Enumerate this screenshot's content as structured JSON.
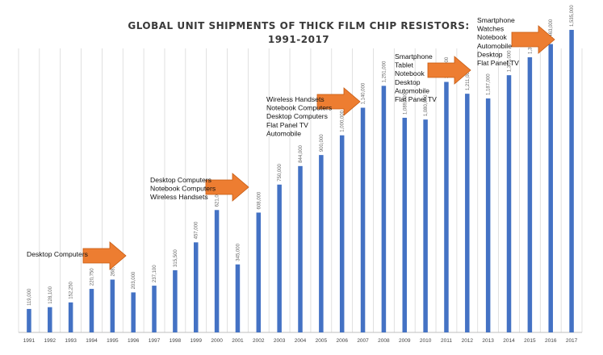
{
  "chart_data": {
    "type": "bar",
    "title_lines": [
      "GLOBAL UNIT SHIPMENTS OF THICK FILM CHIP RESISTORS:",
      "1991-2017"
    ],
    "xlabel": "",
    "ylabel": "",
    "ylim": [
      0,
      1400000
    ],
    "grid": "vertical lines between categories",
    "bar_color": "#4472c4",
    "categories": [
      "1991",
      "1992",
      "1993",
      "1994",
      "1995",
      "1996",
      "1997",
      "1998",
      "1999",
      "2000",
      "2001",
      "2002",
      "2003",
      "2004",
      "2005",
      "2006",
      "2007",
      "2008",
      "2009",
      "2010",
      "2011",
      "2012",
      "2013",
      "2014",
      "2015",
      "2016",
      "2017"
    ],
    "values": [
      119000,
      128100,
      152250,
      220750,
      268000,
      203000,
      237100,
      315500,
      457000,
      621000,
      345000,
      608000,
      750000,
      844000,
      900000,
      1000000,
      1140000,
      1251000,
      1089000,
      1080000,
      1271000,
      1211000,
      1187000,
      1305000,
      1396000,
      1463000,
      1535000
    ],
    "value_labels": [
      "119,000",
      "128,100",
      "152,250",
      "220,750",
      "268,000",
      "203,000",
      "237,100",
      "315,500",
      "457,000",
      "621,000",
      "345,000",
      "608,000",
      "750,000",
      "844,000",
      "900,000",
      "1,000,000",
      "1,140,000",
      "1,251,000",
      "1,089,000",
      "1,080,000",
      "1,271,000",
      "1,211,000",
      "1,187,000",
      "1,305,000",
      "1,396,000",
      "1,463,000",
      "1,535,000"
    ],
    "annotations": [
      {
        "lines": [
          "Desktop Computers"
        ],
        "arrow_color": "#ed7d31"
      },
      {
        "lines": [
          "Desktop Computers",
          "Notebook Computers",
          "Wireless Handsets"
        ],
        "arrow_color": "#ed7d31"
      },
      {
        "lines": [
          "Wireless Handsets",
          "Notebook Computers",
          "Desktop Computers",
          "Flat Panel TV",
          "Automobile"
        ],
        "arrow_color": "#ed7d31"
      },
      {
        "lines": [
          "Smartphone",
          "Tablet",
          "Notebook",
          "Desktop",
          "Automobile",
          "Flat Panel TV"
        ],
        "arrow_color": "#ed7d31"
      },
      {
        "lines": [
          "Smartphone",
          "Watches",
          "Notebook",
          "Automobile",
          "Desktop",
          "Flat Panel TV"
        ],
        "arrow_color": "#ed7d31"
      }
    ]
  }
}
